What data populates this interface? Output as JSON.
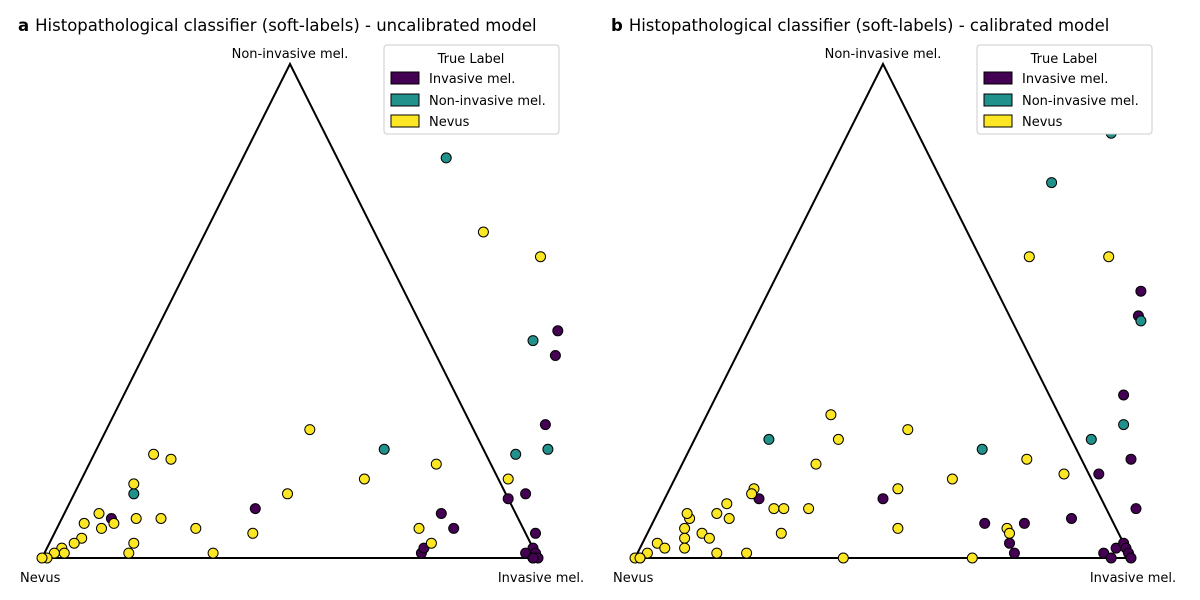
{
  "chart_data": [
    {
      "type": "scatter",
      "panel_letter": "a",
      "title": "Histopathological classifier (soft-labels) - uncalibrated model",
      "vertices": {
        "top": "Non-invasive mel.",
        "left": "Nevus",
        "right": "Invasive mel."
      },
      "legend": {
        "title": "True Label",
        "placement": "top-right",
        "entries": [
          {
            "label": "Invasive mel.",
            "color": "#440154"
          },
          {
            "label": "Non-invasive mel.",
            "color": "#21918c"
          },
          {
            "label": "Nevus",
            "color": "#fde725"
          }
        ]
      },
      "coordinate_order": [
        "invasive",
        "non_invasive"
      ],
      "series": [
        {
          "name": "Invasive mel.",
          "color": "#440154",
          "points": [
            [
              0.81,
              0.46
            ],
            [
              0.83,
              0.41
            ],
            [
              0.88,
              0.27
            ],
            [
              0.91,
              0.13
            ],
            [
              0.88,
              0.12
            ],
            [
              0.76,
              0.09
            ],
            [
              0.8,
              0.06
            ],
            [
              0.97,
              0.05
            ],
            [
              0.38,
              0.1
            ],
            [
              0.1,
              0.08
            ],
            [
              0.76,
              0.01
            ],
            [
              0.76,
              0.02
            ],
            [
              0.98,
              0.02
            ],
            [
              0.97,
              0.01
            ],
            [
              0.99,
              0.01
            ],
            [
              0.99,
              0.0
            ],
            [
              1.0,
              0.0
            ],
            [
              0.99,
              0.0
            ]
          ]
        },
        {
          "name": "Non-invasive mel.",
          "color": "#21918c",
          "points": [
            [
              0.5,
              0.94
            ],
            [
              0.51,
              0.94
            ],
            [
              0.52,
              0.89
            ],
            [
              0.41,
              0.81
            ],
            [
              0.77,
              0.44
            ],
            [
              0.85,
              0.21
            ],
            [
              0.91,
              0.22
            ],
            [
              0.58,
              0.22
            ],
            [
              0.12,
              0.13
            ]
          ]
        },
        {
          "name": "Nevus",
          "color": "#fde725",
          "points": [
            [
              0.56,
              0.66
            ],
            [
              0.7,
              0.61
            ],
            [
              0.86,
              0.16
            ],
            [
              0.7,
              0.19
            ],
            [
              0.57,
              0.16
            ],
            [
              0.41,
              0.26
            ],
            [
              0.43,
              0.13
            ],
            [
              0.12,
              0.21
            ],
            [
              0.16,
              0.2
            ],
            [
              0.11,
              0.15
            ],
            [
              0.28,
              0.06
            ],
            [
              0.4,
              0.05
            ],
            [
              0.2,
              0.08
            ],
            [
              0.15,
              0.08
            ],
            [
              0.11,
              0.07
            ],
            [
              0.07,
              0.09
            ],
            [
              0.09,
              0.06
            ],
            [
              0.05,
              0.07
            ],
            [
              0.06,
              0.04
            ],
            [
              0.17,
              0.03
            ],
            [
              0.17,
              0.01
            ],
            [
              0.34,
              0.01
            ],
            [
              0.77,
              0.03
            ],
            [
              0.73,
              0.06
            ],
            [
              0.03,
              0.02
            ],
            [
              0.04,
              0.01
            ],
            [
              0.05,
              0.03
            ],
            [
              0.02,
              0.01
            ],
            [
              0.01,
              0.0
            ],
            [
              0.0,
              0.0
            ]
          ]
        }
      ]
    },
    {
      "type": "scatter",
      "panel_letter": "b",
      "title": "Histopathological classifier (soft-labels) - calibrated model",
      "vertices": {
        "top": "Non-invasive mel.",
        "left": "Nevus",
        "right": "Invasive mel."
      },
      "legend": {
        "title": "True Label",
        "placement": "top-right",
        "entries": [
          {
            "label": "Invasive mel.",
            "color": "#440154"
          },
          {
            "label": "Non-invasive mel.",
            "color": "#21918c"
          },
          {
            "label": "Nevus",
            "color": "#fde725"
          }
        ]
      },
      "coordinate_order": [
        "invasive",
        "non_invasive"
      ],
      "series": [
        {
          "name": "Invasive mel.",
          "color": "#440154",
          "points": [
            [
              0.75,
              0.54
            ],
            [
              0.77,
              0.49
            ],
            [
              0.82,
              0.33
            ],
            [
              0.9,
              0.2
            ],
            [
              0.85,
              0.17
            ],
            [
              0.96,
              0.1
            ],
            [
              0.67,
              0.07
            ],
            [
              0.75,
              0.07
            ],
            [
              0.84,
              0.08
            ],
            [
              0.44,
              0.12
            ],
            [
              0.19,
              0.12
            ],
            [
              0.74,
              0.03
            ],
            [
              0.76,
              0.01
            ],
            [
              0.94,
              0.01
            ],
            [
              0.96,
              0.02
            ],
            [
              0.97,
              0.03
            ],
            [
              0.98,
              0.02
            ],
            [
              0.99,
              0.01
            ],
            [
              1.0,
              0.0
            ],
            [
              0.96,
              0.0
            ]
          ]
        },
        {
          "name": "Non-invasive mel.",
          "color": "#21918c",
          "points": [
            [
              0.51,
              0.92
            ],
            [
              0.53,
              0.86
            ],
            [
              0.46,
              0.76
            ],
            [
              0.78,
              0.48
            ],
            [
              0.85,
              0.27
            ],
            [
              0.8,
              0.24
            ],
            [
              0.59,
              0.22
            ],
            [
              0.15,
              0.24
            ]
          ]
        },
        {
          "name": "Nevus",
          "color": "#fde725",
          "points": [
            [
              0.52,
              0.93
            ],
            [
              0.49,
              0.61
            ],
            [
              0.65,
              0.61
            ],
            [
              0.42,
              0.26
            ],
            [
              0.25,
              0.29
            ],
            [
              0.29,
              0.24
            ],
            [
              0.27,
              0.19
            ],
            [
              0.69,
              0.2
            ],
            [
              0.78,
              0.17
            ],
            [
              0.56,
              0.16
            ],
            [
              0.46,
              0.14
            ],
            [
              0.3,
              0.1
            ],
            [
              0.23,
              0.1
            ],
            [
              0.25,
              0.1
            ],
            [
              0.17,
              0.14
            ],
            [
              0.17,
              0.13
            ],
            [
              0.13,
              0.11
            ],
            [
              0.12,
              0.09
            ],
            [
              0.15,
              0.08
            ],
            [
              0.07,
              0.08
            ],
            [
              0.11,
              0.05
            ],
            [
              0.13,
              0.04
            ],
            [
              0.27,
              0.05
            ],
            [
              0.5,
              0.06
            ],
            [
              0.72,
              0.06
            ],
            [
              0.73,
              0.05
            ],
            [
              0.16,
              0.01
            ],
            [
              0.22,
              0.01
            ],
            [
              0.42,
              0.0
            ],
            [
              0.06,
              0.09
            ],
            [
              0.07,
              0.06
            ],
            [
              0.08,
              0.04
            ],
            [
              0.09,
              0.02
            ],
            [
              0.03,
              0.03
            ],
            [
              0.05,
              0.02
            ],
            [
              0.02,
              0.01
            ],
            [
              0.01,
              0.0
            ],
            [
              0.0,
              0.0
            ],
            [
              0.01,
              0.0
            ],
            [
              0.68,
              0.0
            ]
          ]
        }
      ]
    }
  ]
}
